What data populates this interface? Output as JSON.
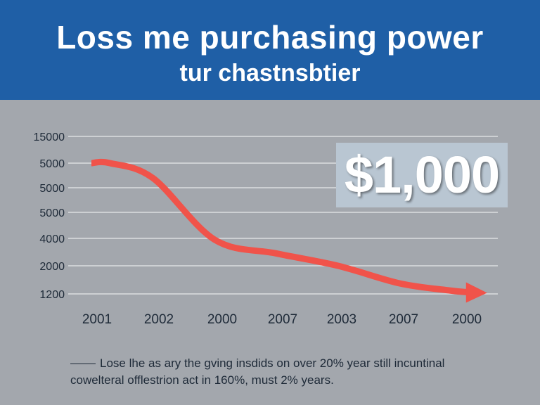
{
  "header": {
    "title": "Loss me purchasing power",
    "subtitle": "tur chastnsbtier"
  },
  "colors": {
    "header_bg": "#1f5fa6",
    "background": "#a3a7ad",
    "line": "#f0534a",
    "grid": "#e6e8ea",
    "badge_bg": "#b9c6d2",
    "text": "#1e2a38"
  },
  "badge": {
    "amount": "$1,000"
  },
  "legend": {
    "line1": "Lose lhe as ary the gving insdids on over 20% year still incuntinal",
    "line2": "cowelteral offlestrion act in 160%, must 2% years."
  },
  "chart_data": {
    "type": "line",
    "title": "Loss me purchasing power",
    "subtitle": "tur chastnsbtier",
    "xlabel": "",
    "ylabel": "",
    "x_tick_labels": [
      "2001",
      "2002",
      "2000",
      "2007",
      "2003",
      "2007",
      "2000"
    ],
    "y_tick_labels": [
      "15000",
      "5000",
      "5000",
      "5000",
      "4000",
      "2000",
      "1200"
    ],
    "grid": true,
    "series": [
      {
        "name": "purchasing power",
        "style": "arrow",
        "values": [
          5000,
          5000,
          4800,
          3900,
          2900,
          2000,
          1500,
          1300,
          1250
        ]
      }
    ],
    "series_x_positions": [
      0,
      0.3,
      1,
      2,
      3,
      4,
      5,
      5.8,
      6.1
    ],
    "y_level_map": [
      15000,
      5000,
      5000,
      5000,
      4000,
      2000,
      1200
    ],
    "annotation": "$1,000"
  }
}
